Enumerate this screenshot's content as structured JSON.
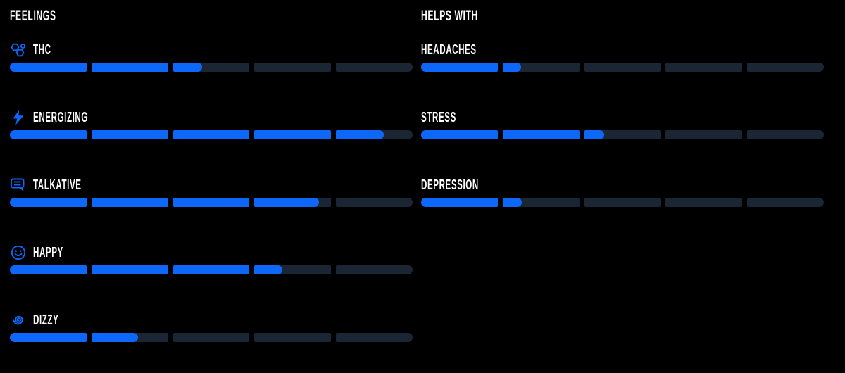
{
  "colors": {
    "accent": "#0d68fa",
    "track": "#1b2635",
    "text": "#ffffff",
    "background": "#000000"
  },
  "chart_data": {
    "type": "bar",
    "subtype": "segmented-rating-bars",
    "segments_per_bar": 5,
    "value_range": [
      0,
      5
    ],
    "grid": false,
    "legend": false,
    "groups": [
      {
        "title": "FEELINGS",
        "items": [
          {
            "label": "THC",
            "icon": "molecule-icon",
            "value": 2.38
          },
          {
            "label": "ENERGIZING",
            "icon": "lightning-icon",
            "value": 4.62
          },
          {
            "label": "TALKATIVE",
            "icon": "speech-bubble-icon",
            "value": 3.84
          },
          {
            "label": "HAPPY",
            "icon": "smiley-icon",
            "value": 3.36
          },
          {
            "label": "DIZZY",
            "icon": "spiral-icon",
            "value": 1.61
          }
        ]
      },
      {
        "title": "HELPS WITH",
        "items": [
          {
            "label": "HEADACHES",
            "value": 1.24
          },
          {
            "label": "STRESS",
            "value": 2.26
          },
          {
            "label": "DEPRESSION",
            "value": 1.25
          }
        ]
      }
    ]
  }
}
